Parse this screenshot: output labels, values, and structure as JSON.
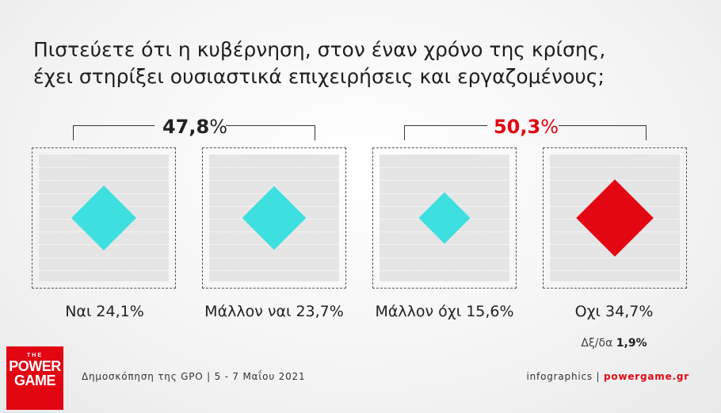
{
  "question": {
    "line1": "Πιστεύετε ότι η κυβέρνηση, στον έναν χρόνο της κρίσης,",
    "line2": "έχει στηρίξει ουσιαστικά επιχειρήσεις και εργαζομένους;"
  },
  "groups": [
    {
      "total_num": "47,8",
      "total_pct": "%",
      "color": "#222222"
    },
    {
      "total_num": "50,3",
      "total_pct": "%",
      "color": "#e30613"
    }
  ],
  "chart_data": {
    "type": "bar",
    "title": "Πιστεύετε ότι η κυβέρνηση, στον έναν χρόνο της κρίσης, έχει στηρίξει ουσιαστικά επιχειρήσεις και εργαζομένους;",
    "categories": [
      "Ναι",
      "Μάλλον ναι",
      "Μάλλον όχι",
      "Οχι"
    ],
    "values": [
      24.1,
      23.7,
      15.6,
      34.7
    ],
    "value_labels": [
      "24,1%",
      "23,7%",
      "15,6%",
      "34,7%"
    ],
    "colors": [
      "#3ee0df",
      "#3ee0df",
      "#3ee0df",
      "#e30613"
    ],
    "group_totals": [
      {
        "categories": [
          "Ναι",
          "Μάλλον ναι"
        ],
        "value": 47.8,
        "label": "47,8%"
      },
      {
        "categories": [
          "Μάλλον όχι",
          "Οχι"
        ],
        "value": 50.3,
        "label": "50,3%"
      }
    ],
    "other": {
      "label": "Δξ/δα",
      "value": 1.9,
      "value_label": "1,9%"
    }
  },
  "dkna": {
    "label": "Δξ/δα",
    "value": "1,9%"
  },
  "logo": {
    "small": "THE",
    "line1": "POWER",
    "line2": "GAME"
  },
  "footer": {
    "source": "Δημοσκόπηση της GPO | 5 - 7 Μαΐου 2021",
    "right_prefix": "infographics | ",
    "site": "powergame.gr"
  }
}
